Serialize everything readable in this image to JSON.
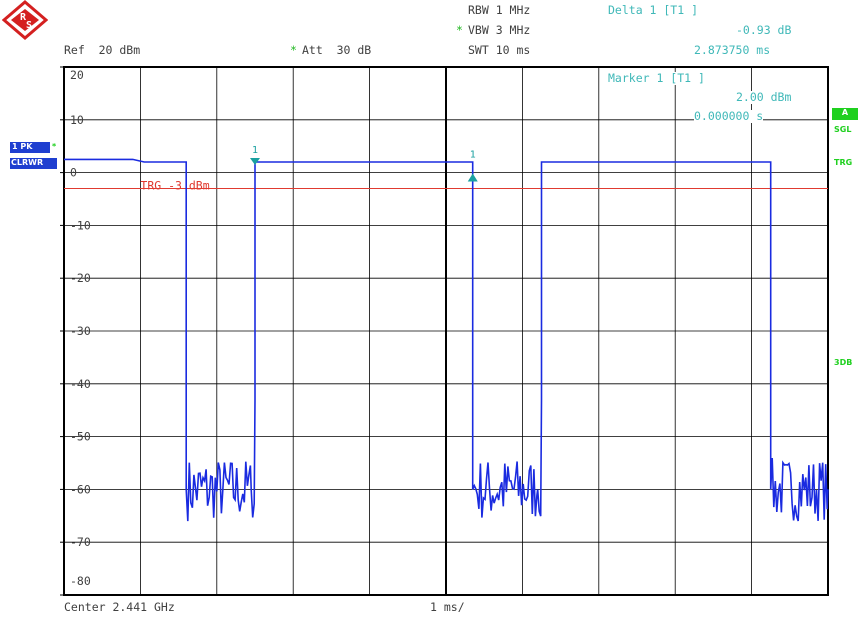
{
  "header": {
    "rbw": "RBW 1 MHz",
    "vbw_star": "*",
    "vbw": "VBW 3 MHz",
    "swt": "SWT 10 ms",
    "ref": "Ref  20 dBm",
    "att_star": "*",
    "att": "Att  30 dB"
  },
  "marker_readout": {
    "delta_label": "Delta 1 [T1 ]",
    "delta_level": "-0.93 dB",
    "delta_time": "2.873750 ms",
    "marker_label": "Marker 1 [T1 ]",
    "marker_level": "2.00 dBm",
    "marker_time": "0.000000 s"
  },
  "left_badges": {
    "trace_mode": "1 PK",
    "trace_star": "*",
    "clear_write": "CLRWR"
  },
  "right_badges": {
    "a": "A",
    "sgl": "SGL",
    "trg": "TRG",
    "db3": "3DB"
  },
  "footer": {
    "center": "Center 2.441 GHz",
    "span_per_div": "1 ms/"
  },
  "colors": {
    "trace": "#1a2be0",
    "trigger_line": "#e03a30",
    "marker": "#1aa0a0",
    "badge_blue": "#1f3fd0",
    "badge_green": "#1fd01f",
    "grid": "#000000",
    "label": "#404040",
    "cyan_text": "#3fb8b8"
  },
  "chart_data": {
    "type": "line",
    "xlim": [
      0,
      10
    ],
    "ylim": [
      -80,
      20
    ],
    "yticks": [
      "20",
      "10",
      "0",
      "-10",
      "-20",
      "-30",
      "-40",
      "-50",
      "-60",
      "-70",
      "-80"
    ],
    "yunit": "dBm",
    "grid": true,
    "trigger": {
      "label": "TRG -3 dBm",
      "level": -3
    },
    "trace_x": [
      0,
      0.9,
      1.05,
      1.55,
      1.6,
      1.6,
      2.45,
      2.5,
      2.5,
      3.0,
      3.8,
      4.6,
      5.3,
      5.35,
      5.35,
      6.2,
      6.25,
      6.25,
      7.0,
      8.0,
      9.2,
      9.25,
      9.25,
      10.0
    ],
    "trace_y": [
      2.5,
      2.5,
      2.0,
      2.0,
      2.0,
      -60,
      -60,
      -43,
      2.0,
      2.0,
      2.0,
      2.0,
      2.0,
      2.0,
      -60,
      -60,
      -43,
      2.0,
      2.0,
      2.0,
      2.0,
      2.0,
      -60,
      -60
    ],
    "noise_floor": {
      "mean": -60,
      "min": -66,
      "max": -54
    },
    "markers": [
      {
        "label": "1",
        "x": 2.5,
        "y": 2.0,
        "kind": "marker"
      },
      {
        "label": "1",
        "x": 5.35,
        "y": -0.93,
        "kind": "delta"
      }
    ]
  }
}
